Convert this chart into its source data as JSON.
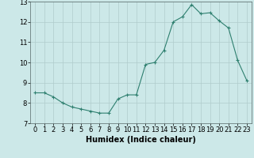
{
  "x": [
    0,
    1,
    2,
    3,
    4,
    5,
    6,
    7,
    8,
    9,
    10,
    11,
    12,
    13,
    14,
    15,
    16,
    17,
    18,
    19,
    20,
    21,
    22,
    23
  ],
  "y": [
    8.5,
    8.5,
    8.3,
    8.0,
    7.8,
    7.7,
    7.6,
    7.5,
    7.5,
    8.2,
    8.4,
    8.4,
    9.9,
    10.0,
    10.6,
    12.0,
    12.25,
    12.85,
    12.4,
    12.45,
    12.05,
    11.7,
    10.1,
    9.1
  ],
  "line_color": "#2e7f6f",
  "marker": "+",
  "marker_size": 3,
  "bg_color": "#cce8e8",
  "grid_color": "#b0cccc",
  "xlabel": "Humidex (Indice chaleur)",
  "xlim": [
    -0.5,
    23.5
  ],
  "ylim": [
    7,
    13
  ],
  "yticks": [
    7,
    8,
    9,
    10,
    11,
    12,
    13
  ],
  "xticks": [
    0,
    1,
    2,
    3,
    4,
    5,
    6,
    7,
    8,
    9,
    10,
    11,
    12,
    13,
    14,
    15,
    16,
    17,
    18,
    19,
    20,
    21,
    22,
    23
  ],
  "xlabel_fontsize": 7,
  "tick_fontsize": 6
}
